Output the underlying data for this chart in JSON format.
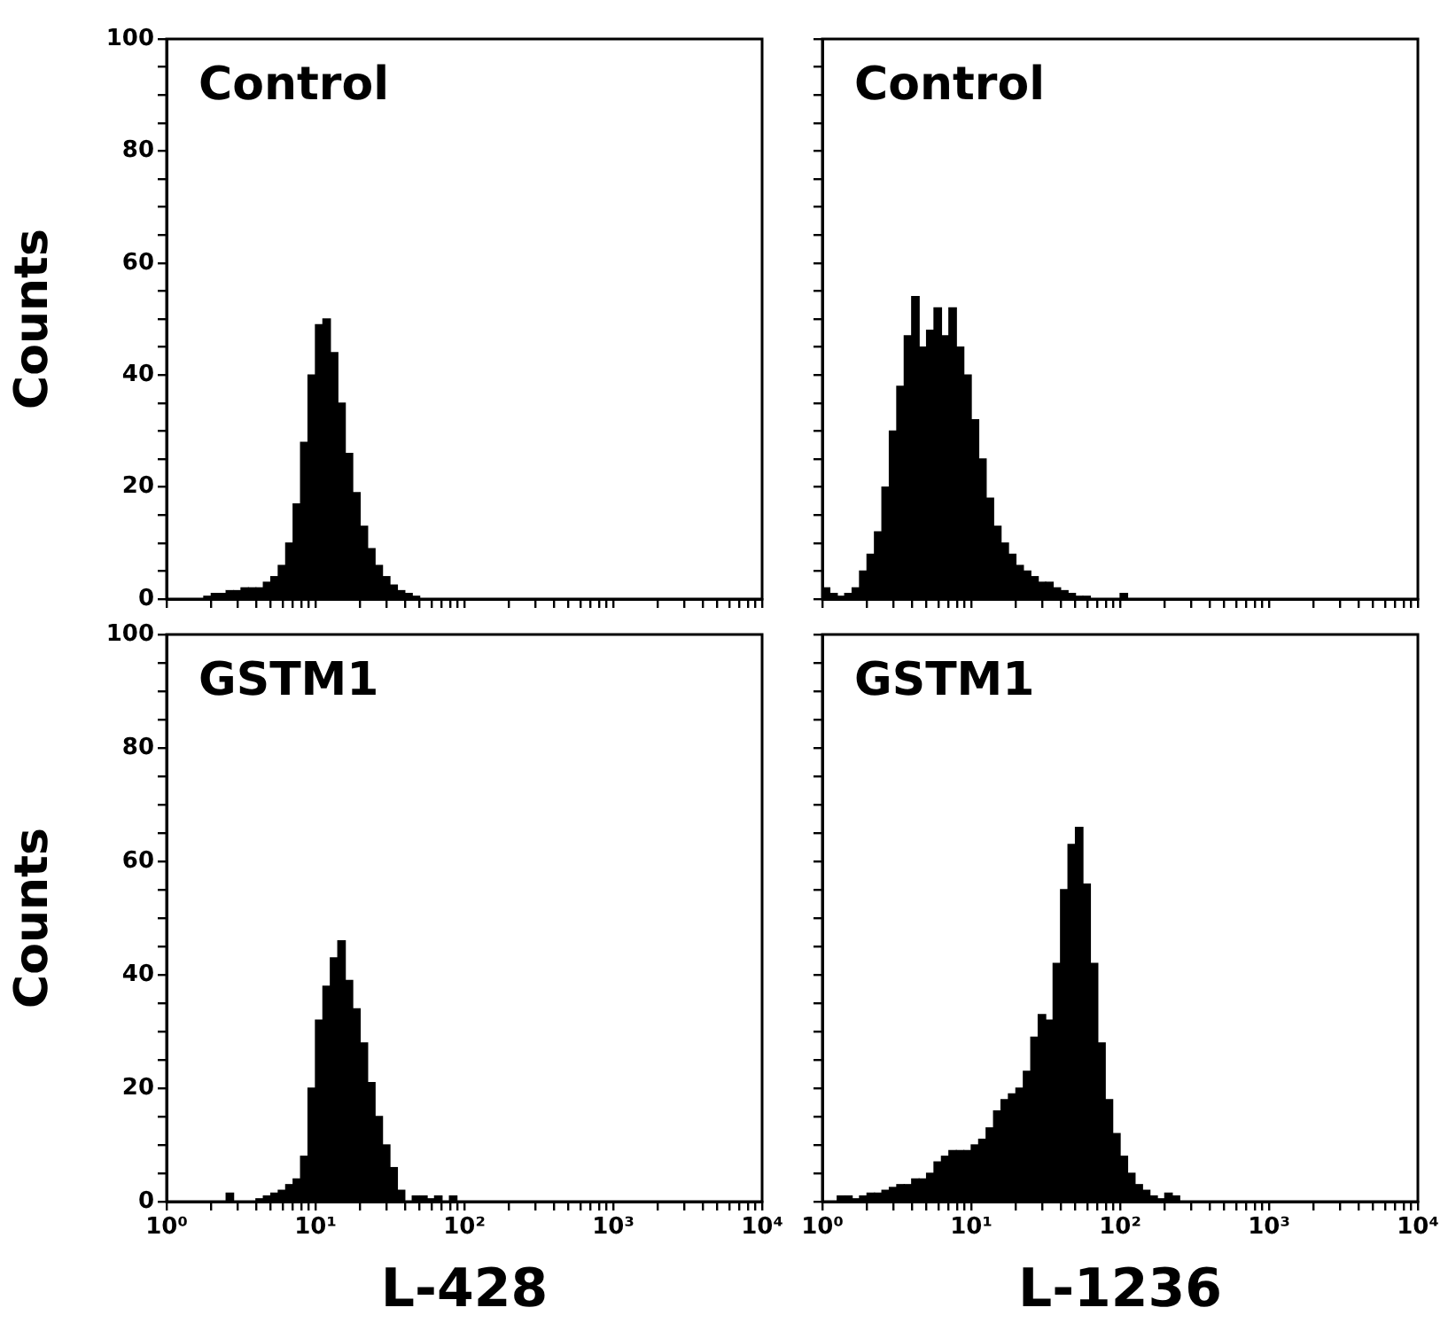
{
  "chart_data": [
    {
      "type": "histogram",
      "annotations": [
        "Control"
      ],
      "ylabel": "Counts",
      "log": "x",
      "tick_labels": "y",
      "color": "#000000",
      "xlim": [
        1,
        10000
      ],
      "ylim": [
        0,
        100
      ],
      "bins": [
        1.778,
        1.995,
        2.239,
        2.512,
        2.818,
        3.162,
        3.548,
        3.981,
        4.467,
        5.012,
        5.623,
        6.31,
        7.079,
        7.943,
        8.913,
        10,
        11.22,
        12.59,
        14.13,
        15.85,
        17.78,
        19.95,
        22.39,
        25.12,
        28.18,
        31.62,
        35.48,
        39.81,
        44.67,
        50.12
      ],
      "values": [
        0.5,
        1,
        1,
        1.5,
        1.5,
        2,
        2,
        2,
        3,
        4,
        6,
        10,
        17,
        28,
        40,
        49,
        50,
        44,
        35,
        26,
        19,
        13,
        9,
        6,
        4,
        2.5,
        1.5,
        1,
        0.5
      ],
      "xticks": [
        {
          "value": 1,
          "label": null
        },
        {
          "value": 2,
          "label": null
        },
        {
          "value": 3,
          "label": null
        },
        {
          "value": 4,
          "label": null
        },
        {
          "value": 5,
          "label": null
        },
        {
          "value": 6,
          "label": null
        },
        {
          "value": 7,
          "label": null
        },
        {
          "value": 8,
          "label": null
        },
        {
          "value": 9,
          "label": null
        },
        {
          "value": 10,
          "label": null
        },
        {
          "value": 20,
          "label": null
        },
        {
          "value": 30,
          "label": null
        },
        {
          "value": 40,
          "label": null
        },
        {
          "value": 50,
          "label": null
        },
        {
          "value": 60,
          "label": null
        },
        {
          "value": 70,
          "label": null
        },
        {
          "value": 80,
          "label": null
        },
        {
          "value": 90,
          "label": null
        },
        {
          "value": 100,
          "label": null
        },
        {
          "value": 200,
          "label": null
        },
        {
          "value": 300,
          "label": null
        },
        {
          "value": 400,
          "label": null
        },
        {
          "value": 500,
          "label": null
        },
        {
          "value": 600,
          "label": null
        },
        {
          "value": 700,
          "label": null
        },
        {
          "value": 800,
          "label": null
        },
        {
          "value": 900,
          "label": null
        },
        {
          "value": 1000,
          "label": null
        },
        {
          "value": 2000,
          "label": null
        },
        {
          "value": 3000,
          "label": null
        },
        {
          "value": 4000,
          "label": null
        },
        {
          "value": 5000,
          "label": null
        },
        {
          "value": 6000,
          "label": null
        },
        {
          "value": 7000,
          "label": null
        },
        {
          "value": 8000,
          "label": null
        },
        {
          "value": 9000,
          "label": null
        },
        {
          "value": 10000,
          "label": null
        }
      ],
      "yticks": [
        0,
        {
          "value": 5,
          "label": null
        },
        {
          "value": 10,
          "label": null
        },
        {
          "value": 15,
          "label": null
        },
        20,
        {
          "value": 25,
          "label": null
        },
        {
          "value": 30,
          "label": null
        },
        {
          "value": 35,
          "label": null
        },
        40,
        {
          "value": 45,
          "label": null
        },
        {
          "value": 50,
          "label": null
        },
        {
          "value": 55,
          "label": null
        },
        60,
        {
          "value": 65,
          "label": null
        },
        {
          "value": 70,
          "label": null
        },
        {
          "value": 75,
          "label": null
        },
        80,
        {
          "value": 85,
          "label": null
        },
        {
          "value": 90,
          "label": null
        },
        {
          "value": 95,
          "label": null
        },
        100
      ]
    },
    {
      "type": "histogram",
      "annotations": [
        "Control"
      ],
      "log": "x",
      "tick_labels": false,
      "color": "#000000",
      "xlim": [
        1,
        10000
      ],
      "ylim": [
        0,
        100
      ],
      "bins": [
        1,
        1.122,
        1.259,
        1.413,
        1.585,
        1.778,
        1.995,
        2.239,
        2.512,
        2.818,
        3.162,
        3.548,
        3.981,
        4.467,
        5.012,
        5.623,
        6.31,
        7.079,
        7.943,
        8.913,
        10,
        11.22,
        12.59,
        14.13,
        15.85,
        17.78,
        19.95,
        22.39,
        25.12,
        28.18,
        31.62,
        35.48,
        39.81,
        44.67,
        50.12,
        56.23,
        63.1,
        70.79,
        79.43,
        89.13,
        100,
        112.2
      ],
      "values": [
        2,
        1,
        0.5,
        1,
        2,
        5,
        8,
        12,
        20,
        30,
        38,
        47,
        54,
        45,
        48,
        52,
        47,
        52,
        45,
        40,
        32,
        25,
        18,
        13,
        10,
        8,
        6,
        5,
        4,
        3,
        3,
        2,
        1.5,
        1,
        0.5,
        0.5,
        0,
        0,
        0,
        0,
        1
      ],
      "xticks": [
        {
          "value": 1,
          "label": null
        },
        {
          "value": 2,
          "label": null
        },
        {
          "value": 3,
          "label": null
        },
        {
          "value": 4,
          "label": null
        },
        {
          "value": 5,
          "label": null
        },
        {
          "value": 6,
          "label": null
        },
        {
          "value": 7,
          "label": null
        },
        {
          "value": 8,
          "label": null
        },
        {
          "value": 9,
          "label": null
        },
        {
          "value": 10,
          "label": null
        },
        {
          "value": 20,
          "label": null
        },
        {
          "value": 30,
          "label": null
        },
        {
          "value": 40,
          "label": null
        },
        {
          "value": 50,
          "label": null
        },
        {
          "value": 60,
          "label": null
        },
        {
          "value": 70,
          "label": null
        },
        {
          "value": 80,
          "label": null
        },
        {
          "value": 90,
          "label": null
        },
        {
          "value": 100,
          "label": null
        },
        {
          "value": 200,
          "label": null
        },
        {
          "value": 300,
          "label": null
        },
        {
          "value": 400,
          "label": null
        },
        {
          "value": 500,
          "label": null
        },
        {
          "value": 600,
          "label": null
        },
        {
          "value": 700,
          "label": null
        },
        {
          "value": 800,
          "label": null
        },
        {
          "value": 900,
          "label": null
        },
        {
          "value": 1000,
          "label": null
        },
        {
          "value": 2000,
          "label": null
        },
        {
          "value": 3000,
          "label": null
        },
        {
          "value": 4000,
          "label": null
        },
        {
          "value": 5000,
          "label": null
        },
        {
          "value": 6000,
          "label": null
        },
        {
          "value": 7000,
          "label": null
        },
        {
          "value": 8000,
          "label": null
        },
        {
          "value": 9000,
          "label": null
        },
        {
          "value": 10000,
          "label": null
        }
      ],
      "yticks": [
        0,
        {
          "value": 5,
          "label": null
        },
        {
          "value": 10,
          "label": null
        },
        {
          "value": 15,
          "label": null
        },
        20,
        {
          "value": 25,
          "label": null
        },
        {
          "value": 30,
          "label": null
        },
        {
          "value": 35,
          "label": null
        },
        40,
        {
          "value": 45,
          "label": null
        },
        {
          "value": 50,
          "label": null
        },
        {
          "value": 55,
          "label": null
        },
        60,
        {
          "value": 65,
          "label": null
        },
        {
          "value": 70,
          "label": null
        },
        {
          "value": 75,
          "label": null
        },
        80,
        {
          "value": 85,
          "label": null
        },
        {
          "value": 90,
          "label": null
        },
        {
          "value": 95,
          "label": null
        },
        100
      ]
    },
    {
      "type": "histogram",
      "annotations": [
        "GSTM1"
      ],
      "ylabel": "Counts",
      "xlabel": "L-428",
      "log": "x",
      "color": "#000000",
      "xlim": [
        1,
        10000
      ],
      "ylim": [
        0,
        100
      ],
      "bins": [
        2.512,
        2.818,
        3.162,
        3.548,
        3.981,
        4.467,
        5.012,
        5.623,
        6.31,
        7.079,
        7.943,
        8.913,
        10,
        11.22,
        12.59,
        14.13,
        15.85,
        17.78,
        19.95,
        22.39,
        25.12,
        28.18,
        31.62,
        35.48,
        39.81,
        44.67,
        50.12,
        56.23,
        63.1,
        70.79,
        79.43,
        89.13
      ],
      "values": [
        1.5,
        0,
        0,
        0,
        0.5,
        1,
        1.5,
        2,
        3,
        4,
        8,
        20,
        32,
        38,
        43,
        46,
        39,
        34,
        28,
        21,
        15,
        10,
        6,
        2,
        0,
        1,
        1,
        0.5,
        1,
        0,
        1
      ],
      "xticks": [
        {
          "value": 1,
          "label": "10⁰"
        },
        {
          "value": 2,
          "label": null
        },
        {
          "value": 3,
          "label": null
        },
        {
          "value": 4,
          "label": null
        },
        {
          "value": 5,
          "label": null
        },
        {
          "value": 6,
          "label": null
        },
        {
          "value": 7,
          "label": null
        },
        {
          "value": 8,
          "label": null
        },
        {
          "value": 9,
          "label": null
        },
        {
          "value": 10,
          "label": "10¹"
        },
        {
          "value": 20,
          "label": null
        },
        {
          "value": 30,
          "label": null
        },
        {
          "value": 40,
          "label": null
        },
        {
          "value": 50,
          "label": null
        },
        {
          "value": 60,
          "label": null
        },
        {
          "value": 70,
          "label": null
        },
        {
          "value": 80,
          "label": null
        },
        {
          "value": 90,
          "label": null
        },
        {
          "value": 100,
          "label": "10²"
        },
        {
          "value": 200,
          "label": null
        },
        {
          "value": 300,
          "label": null
        },
        {
          "value": 400,
          "label": null
        },
        {
          "value": 500,
          "label": null
        },
        {
          "value": 600,
          "label": null
        },
        {
          "value": 700,
          "label": null
        },
        {
          "value": 800,
          "label": null
        },
        {
          "value": 900,
          "label": null
        },
        {
          "value": 1000,
          "label": "10³"
        },
        {
          "value": 2000,
          "label": null
        },
        {
          "value": 3000,
          "label": null
        },
        {
          "value": 4000,
          "label": null
        },
        {
          "value": 5000,
          "label": null
        },
        {
          "value": 6000,
          "label": null
        },
        {
          "value": 7000,
          "label": null
        },
        {
          "value": 8000,
          "label": null
        },
        {
          "value": 9000,
          "label": null
        },
        {
          "value": 10000,
          "label": "10⁴"
        }
      ],
      "yticks": [
        0,
        {
          "value": 5,
          "label": null
        },
        {
          "value": 10,
          "label": null
        },
        {
          "value": 15,
          "label": null
        },
        20,
        {
          "value": 25,
          "label": null
        },
        {
          "value": 30,
          "label": null
        },
        {
          "value": 35,
          "label": null
        },
        40,
        {
          "value": 45,
          "label": null
        },
        {
          "value": 50,
          "label": null
        },
        {
          "value": 55,
          "label": null
        },
        60,
        {
          "value": 65,
          "label": null
        },
        {
          "value": 70,
          "label": null
        },
        {
          "value": 75,
          "label": null
        },
        80,
        {
          "value": 85,
          "label": null
        },
        {
          "value": 90,
          "label": null
        },
        {
          "value": 95,
          "label": null
        },
        100
      ]
    },
    {
      "type": "histogram",
      "annotations": [
        "GSTM1"
      ],
      "xlabel": "L-1236",
      "log": "x",
      "tick_labels": "x",
      "color": "#000000",
      "xlim": [
        1,
        10000
      ],
      "ylim": [
        0,
        100
      ],
      "bins": [
        1.259,
        1.413,
        1.585,
        1.778,
        1.995,
        2.239,
        2.512,
        2.818,
        3.162,
        3.548,
        3.981,
        4.467,
        5.012,
        5.623,
        6.31,
        7.079,
        7.943,
        8.913,
        10,
        11.22,
        12.59,
        14.13,
        15.85,
        17.78,
        19.95,
        22.39,
        25.12,
        28.18,
        31.62,
        35.48,
        39.81,
        44.67,
        50.12,
        56.23,
        63.1,
        70.79,
        79.43,
        89.13,
        100,
        112.2,
        125.9,
        141.3,
        158.5,
        177.8,
        199.5,
        223.9,
        251.2
      ],
      "values": [
        1,
        1,
        0.5,
        1,
        1.5,
        1.5,
        2,
        2.5,
        3,
        3,
        4,
        4,
        5,
        7,
        8,
        9,
        9,
        9,
        10,
        11,
        13,
        16,
        18,
        19,
        20,
        23,
        29,
        33,
        32,
        42,
        55,
        63,
        66,
        56,
        42,
        28,
        18,
        12,
        8,
        5,
        3,
        2,
        1,
        0.5,
        1.5,
        1
      ],
      "xticks": [
        {
          "value": 1,
          "label": "10⁰"
        },
        {
          "value": 2,
          "label": null
        },
        {
          "value": 3,
          "label": null
        },
        {
          "value": 4,
          "label": null
        },
        {
          "value": 5,
          "label": null
        },
        {
          "value": 6,
          "label": null
        },
        {
          "value": 7,
          "label": null
        },
        {
          "value": 8,
          "label": null
        },
        {
          "value": 9,
          "label": null
        },
        {
          "value": 10,
          "label": "10¹"
        },
        {
          "value": 20,
          "label": null
        },
        {
          "value": 30,
          "label": null
        },
        {
          "value": 40,
          "label": null
        },
        {
          "value": 50,
          "label": null
        },
        {
          "value": 60,
          "label": null
        },
        {
          "value": 70,
          "label": null
        },
        {
          "value": 80,
          "label": null
        },
        {
          "value": 90,
          "label": null
        },
        {
          "value": 100,
          "label": "10²"
        },
        {
          "value": 200,
          "label": null
        },
        {
          "value": 300,
          "label": null
        },
        {
          "value": 400,
          "label": null
        },
        {
          "value": 500,
          "label": null
        },
        {
          "value": 600,
          "label": null
        },
        {
          "value": 700,
          "label": null
        },
        {
          "value": 800,
          "label": null
        },
        {
          "value": 900,
          "label": null
        },
        {
          "value": 1000,
          "label": "10³"
        },
        {
          "value": 2000,
          "label": null
        },
        {
          "value": 3000,
          "label": null
        },
        {
          "value": 4000,
          "label": null
        },
        {
          "value": 5000,
          "label": null
        },
        {
          "value": 6000,
          "label": null
        },
        {
          "value": 7000,
          "label": null
        },
        {
          "value": 8000,
          "label": null
        },
        {
          "value": 9000,
          "label": null
        },
        {
          "value": 10000,
          "label": "10⁴"
        }
      ],
      "yticks": [
        0,
        {
          "value": 5,
          "label": null
        },
        {
          "value": 10,
          "label": null
        },
        {
          "value": 15,
          "label": null
        },
        20,
        {
          "value": 25,
          "label": null
        },
        {
          "value": 30,
          "label": null
        },
        {
          "value": 35,
          "label": null
        },
        40,
        {
          "value": 45,
          "label": null
        },
        {
          "value": 50,
          "label": null
        },
        {
          "value": 55,
          "label": null
        },
        60,
        {
          "value": 65,
          "label": null
        },
        {
          "value": 70,
          "label": null
        },
        {
          "value": 75,
          "label": null
        },
        80,
        {
          "value": 85,
          "label": null
        },
        {
          "value": 90,
          "label": null
        },
        {
          "value": 95,
          "label": null
        },
        100
      ]
    }
  ]
}
